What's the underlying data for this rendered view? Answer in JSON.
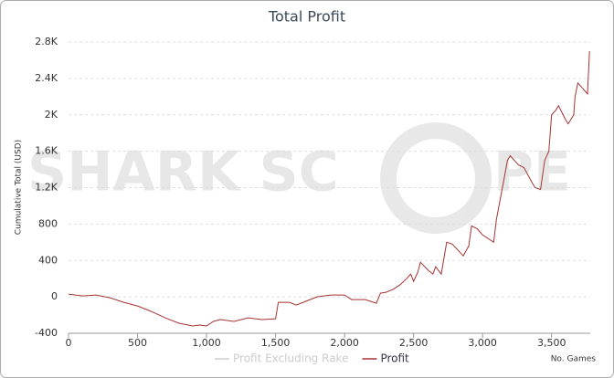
{
  "chart_data": {
    "type": "line",
    "title": "Total Profit",
    "y_label": "Cumulative Total (USD)",
    "x_label": "No. Games",
    "watermark": [
      "SHARK SC",
      "PE"
    ],
    "x": [
      0,
      100,
      200,
      300,
      400,
      500,
      600,
      700,
      800,
      900,
      950,
      1000,
      1050,
      1100,
      1200,
      1300,
      1400,
      1500,
      1520,
      1600,
      1650,
      1700,
      1750,
      1800,
      1900,
      2000,
      2050,
      2150,
      2230,
      2260,
      2300,
      2350,
      2400,
      2450,
      2480,
      2500,
      2530,
      2550,
      2600,
      2640,
      2660,
      2700,
      2740,
      2780,
      2830,
      2860,
      2900,
      2920,
      2960,
      3000,
      3080,
      3100,
      3150,
      3180,
      3200,
      3260,
      3300,
      3360,
      3380,
      3420,
      3450,
      3480,
      3500,
      3530,
      3550,
      3600,
      3620,
      3660,
      3670,
      3690,
      3720,
      3760,
      3775
    ],
    "series": [
      {
        "name": "Profit Excluding Rake",
        "color": "#cccccc",
        "hidden": true,
        "values": [
          null,
          null,
          null,
          null,
          null,
          null,
          null,
          null,
          null,
          null,
          null,
          null,
          null,
          null,
          null,
          null,
          null,
          null,
          null,
          null,
          null,
          null,
          null,
          null,
          null,
          null,
          null,
          null,
          null,
          null,
          null,
          null,
          null,
          null,
          null,
          null,
          null,
          null,
          null,
          null,
          null,
          null,
          null,
          null,
          null,
          null,
          null,
          null,
          null,
          null,
          null,
          null,
          null,
          null,
          null,
          null,
          null,
          null,
          null,
          null,
          null,
          null,
          null,
          null,
          null,
          null,
          null,
          null,
          null,
          null,
          null,
          null,
          null
        ]
      },
      {
        "name": "Profit",
        "color": "#a83232",
        "values": [
          30,
          10,
          20,
          -10,
          -60,
          -100,
          -160,
          -230,
          -290,
          -320,
          -310,
          -320,
          -270,
          -250,
          -270,
          -230,
          -250,
          -240,
          -60,
          -60,
          -90,
          -60,
          -30,
          0,
          20,
          20,
          -30,
          -30,
          -70,
          40,
          50,
          80,
          130,
          200,
          250,
          170,
          270,
          380,
          300,
          250,
          330,
          250,
          600,
          580,
          500,
          450,
          560,
          780,
          750,
          680,
          600,
          850,
          1250,
          1500,
          1550,
          1450,
          1420,
          1250,
          1200,
          1180,
          1500,
          1600,
          2000,
          2050,
          2100,
          1950,
          1900,
          2000,
          2200,
          2350,
          2300,
          2230,
          2700
        ]
      }
    ],
    "xlim": [
      0,
      3780
    ],
    "xticks": [
      0,
      500,
      {
        "value": 1000,
        "label": "1,000"
      },
      {
        "value": 1500,
        "label": "1,500"
      },
      {
        "value": 2000,
        "label": "2,000"
      },
      {
        "value": 2500,
        "label": "2,500"
      },
      {
        "value": 3000,
        "label": "3,000"
      },
      {
        "value": 3500,
        "label": "3,500"
      }
    ],
    "ylim": [
      -400,
      2800
    ],
    "yticks": [
      -400,
      0,
      400,
      800,
      {
        "value": 1200,
        "label": "1.2K"
      },
      {
        "value": 1600,
        "label": "1.6K"
      },
      {
        "value": 2000,
        "label": "2K"
      },
      {
        "value": 2400,
        "label": "2.4K"
      },
      {
        "value": 2800,
        "label": "2.8K"
      }
    ],
    "grid": true
  }
}
